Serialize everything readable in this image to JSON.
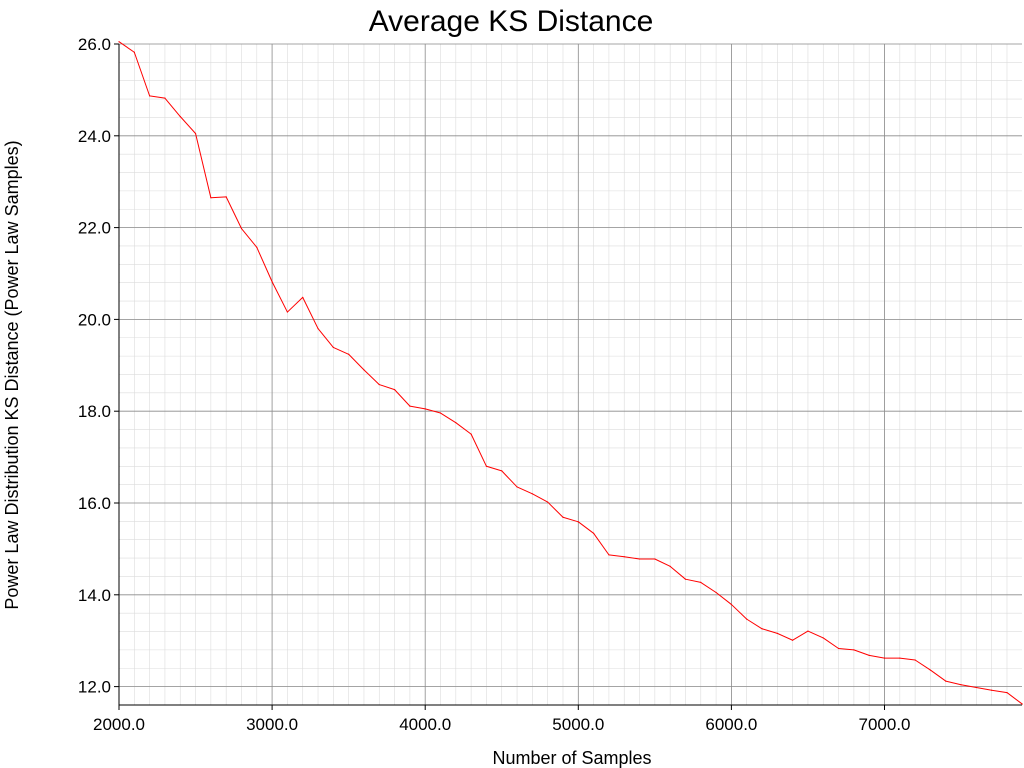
{
  "chart_data": {
    "type": "line",
    "title": "Average KS Distance",
    "xlabel": "Number of Samples",
    "ylabel": "Power Law Distribution KS Distance (Power Law Samples)",
    "xlim": [
      2000,
      7900
    ],
    "ylim": [
      11.6,
      26.0
    ],
    "x_ticks": [
      "2000.0",
      "3000.0",
      "4000.0",
      "5000.0",
      "6000.0",
      "7000.0"
    ],
    "y_ticks": [
      "12.0",
      "14.0",
      "16.0",
      "18.0",
      "20.0",
      "22.0",
      "24.0",
      "26.0"
    ],
    "grid": true,
    "legend": "none",
    "colors": {
      "series": "#ff0000",
      "major_grid": "#8c8c8c",
      "minor_grid": "#dcdcdc",
      "axis": "#000000"
    },
    "series": [
      {
        "x": [
          2000,
          2100,
          2200,
          2300,
          2400,
          2500,
          2600,
          2700,
          2800,
          2900,
          3000,
          3100,
          3200,
          3300,
          3400,
          3500,
          3600,
          3700,
          3800,
          3900,
          4000,
          4100,
          4200,
          4300,
          4400,
          4500,
          4600,
          4700,
          4800,
          4900,
          5000,
          5100,
          5200,
          5300,
          5400,
          5500,
          5600,
          5700,
          5800,
          5900,
          6000,
          6100,
          6200,
          6300,
          6400,
          6500,
          6600,
          6700,
          6800,
          6900,
          7000,
          7100,
          7200,
          7300,
          7400,
          7500,
          7600,
          7700,
          7800,
          7900
        ],
        "values": [
          26.05,
          25.82,
          24.87,
          24.82,
          24.42,
          24.05,
          22.65,
          22.67,
          21.98,
          21.57,
          20.82,
          20.16,
          20.48,
          19.8,
          19.39,
          19.24,
          18.9,
          18.58,
          18.47,
          18.11,
          18.05,
          17.96,
          17.75,
          17.5,
          16.8,
          16.7,
          16.35,
          16.2,
          16.02,
          15.69,
          15.59,
          15.34,
          14.87,
          14.83,
          14.78,
          14.78,
          14.62,
          14.34,
          14.27,
          14.05,
          13.79,
          13.47,
          13.26,
          13.16,
          13.01,
          13.21,
          13.06,
          12.83,
          12.8,
          12.68,
          12.62,
          12.62,
          12.58,
          12.36,
          12.12,
          12.04,
          11.98,
          11.92,
          11.87,
          11.62
        ]
      }
    ]
  }
}
